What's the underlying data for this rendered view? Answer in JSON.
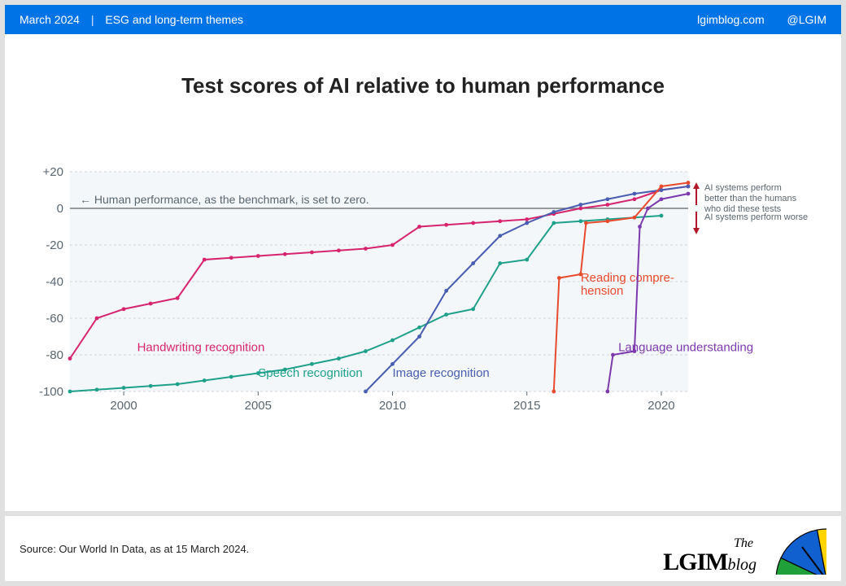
{
  "header": {
    "date": "March 2024",
    "section": "ESG and long-term themes",
    "site": "lgimblog.com",
    "handle": "@LGIM",
    "bg_color": "#0073e6",
    "text_color": "#ffffff"
  },
  "title": "Test scores of AI relative to human performance",
  "title_fontsize": 26,
  "title_color": "#222222",
  "chart": {
    "type": "line",
    "background_color": "#f3f7fa",
    "grid_color": "#d0d6dc",
    "axis_text_color": "#5a6670",
    "axis_fontsize": 15,
    "label_fontsize": 14,
    "xlim": [
      1998,
      2021
    ],
    "ylim": [
      -100,
      20
    ],
    "xticks": [
      2000,
      2005,
      2010,
      2015,
      2020
    ],
    "yticks": [
      -100,
      -80,
      -60,
      -40,
      -20,
      0,
      20
    ],
    "ytick_labels": [
      "-100",
      "-80",
      "-60",
      "-40",
      "-20",
      "0",
      "+20"
    ],
    "zero_line_color": "#7a7a7a",
    "benchmark_text": "Human performance, as the benchmark, is set to zero.",
    "benchmark_text_color": "#5a6670",
    "annotation_better": "AI systems perform better than the humans who did these tests",
    "annotation_worse": "AI systems perform worse",
    "annotation_color": "#5a6670",
    "arrow_color": "#b0182a",
    "line_width": 2.0,
    "marker_radius": 2.4,
    "series": [
      {
        "name": "Handwriting recognition",
        "label": "Handwriting recognition",
        "color": "#d6246e",
        "label_x": 2000.5,
        "label_y": -78,
        "points": [
          [
            1998,
            -82
          ],
          [
            1999,
            -60
          ],
          [
            2000,
            -55
          ],
          [
            2001,
            -52
          ],
          [
            2002,
            -49
          ],
          [
            2003,
            -28
          ],
          [
            2004,
            -27
          ],
          [
            2005,
            -26
          ],
          [
            2006,
            -25
          ],
          [
            2007,
            -24
          ],
          [
            2008,
            -23
          ],
          [
            2009,
            -22
          ],
          [
            2010,
            -20
          ],
          [
            2011,
            -10
          ],
          [
            2012,
            -9
          ],
          [
            2013,
            -8
          ],
          [
            2014,
            -7
          ],
          [
            2015,
            -6
          ],
          [
            2016,
            -3
          ],
          [
            2017,
            0
          ],
          [
            2018,
            2
          ],
          [
            2019,
            5
          ],
          [
            2020,
            10
          ],
          [
            2021,
            12
          ]
        ]
      },
      {
        "name": "Speech recognition",
        "label": "Speech recognition",
        "color": "#1fa08a",
        "label_x": 2005,
        "label_y": -92,
        "points": [
          [
            1998,
            -100
          ],
          [
            1999,
            -99
          ],
          [
            2000,
            -98
          ],
          [
            2001,
            -97
          ],
          [
            2002,
            -96
          ],
          [
            2003,
            -94
          ],
          [
            2004,
            -92
          ],
          [
            2005,
            -90
          ],
          [
            2006,
            -88
          ],
          [
            2007,
            -85
          ],
          [
            2008,
            -82
          ],
          [
            2009,
            -78
          ],
          [
            2010,
            -72
          ],
          [
            2011,
            -65
          ],
          [
            2012,
            -58
          ],
          [
            2013,
            -55
          ],
          [
            2014,
            -30
          ],
          [
            2015,
            -28
          ],
          [
            2016,
            -8
          ],
          [
            2017,
            -7
          ],
          [
            2018,
            -6
          ],
          [
            2019,
            -5
          ],
          [
            2020,
            -4
          ]
        ]
      },
      {
        "name": "Image recognition",
        "label": "Image recognition",
        "color": "#4a5db0",
        "label_x": 2010,
        "label_y": -92,
        "points": [
          [
            2009,
            -100
          ],
          [
            2010,
            -85
          ],
          [
            2011,
            -70
          ],
          [
            2012,
            -45
          ],
          [
            2013,
            -30
          ],
          [
            2014,
            -15
          ],
          [
            2015,
            -8
          ],
          [
            2016,
            -2
          ],
          [
            2017,
            2
          ],
          [
            2018,
            5
          ],
          [
            2019,
            8
          ],
          [
            2020,
            10
          ],
          [
            2021,
            12
          ]
        ]
      },
      {
        "name": "Reading comprehension",
        "label": "Reading compre-\nhension",
        "color": "#e84a2e",
        "label_x": 2017,
        "label_y": -40,
        "points": [
          [
            2016,
            -100
          ],
          [
            2016.2,
            -38
          ],
          [
            2017,
            -36
          ],
          [
            2017.2,
            -8
          ],
          [
            2018,
            -7
          ],
          [
            2019,
            -5
          ],
          [
            2020,
            12
          ],
          [
            2021,
            14
          ]
        ]
      },
      {
        "name": "Language understanding",
        "label": "Language understanding",
        "color": "#7c3aad",
        "label_x": 2018.4,
        "label_y": -78,
        "points": [
          [
            2018,
            -100
          ],
          [
            2018.2,
            -80
          ],
          [
            2019,
            -78
          ],
          [
            2019.2,
            -10
          ],
          [
            2019.5,
            0
          ],
          [
            2020,
            5
          ],
          [
            2021,
            8
          ]
        ]
      }
    ]
  },
  "footer": {
    "source": "Source: Our World In Data, as at 15 March 2024.",
    "source_color": "#222222",
    "logo_the": "The",
    "logo_main": "LGIM",
    "logo_sub": "blog",
    "umbrella_colors": [
      "#1fa038",
      "#1060d0",
      "#ffd400",
      "#e01020"
    ]
  }
}
